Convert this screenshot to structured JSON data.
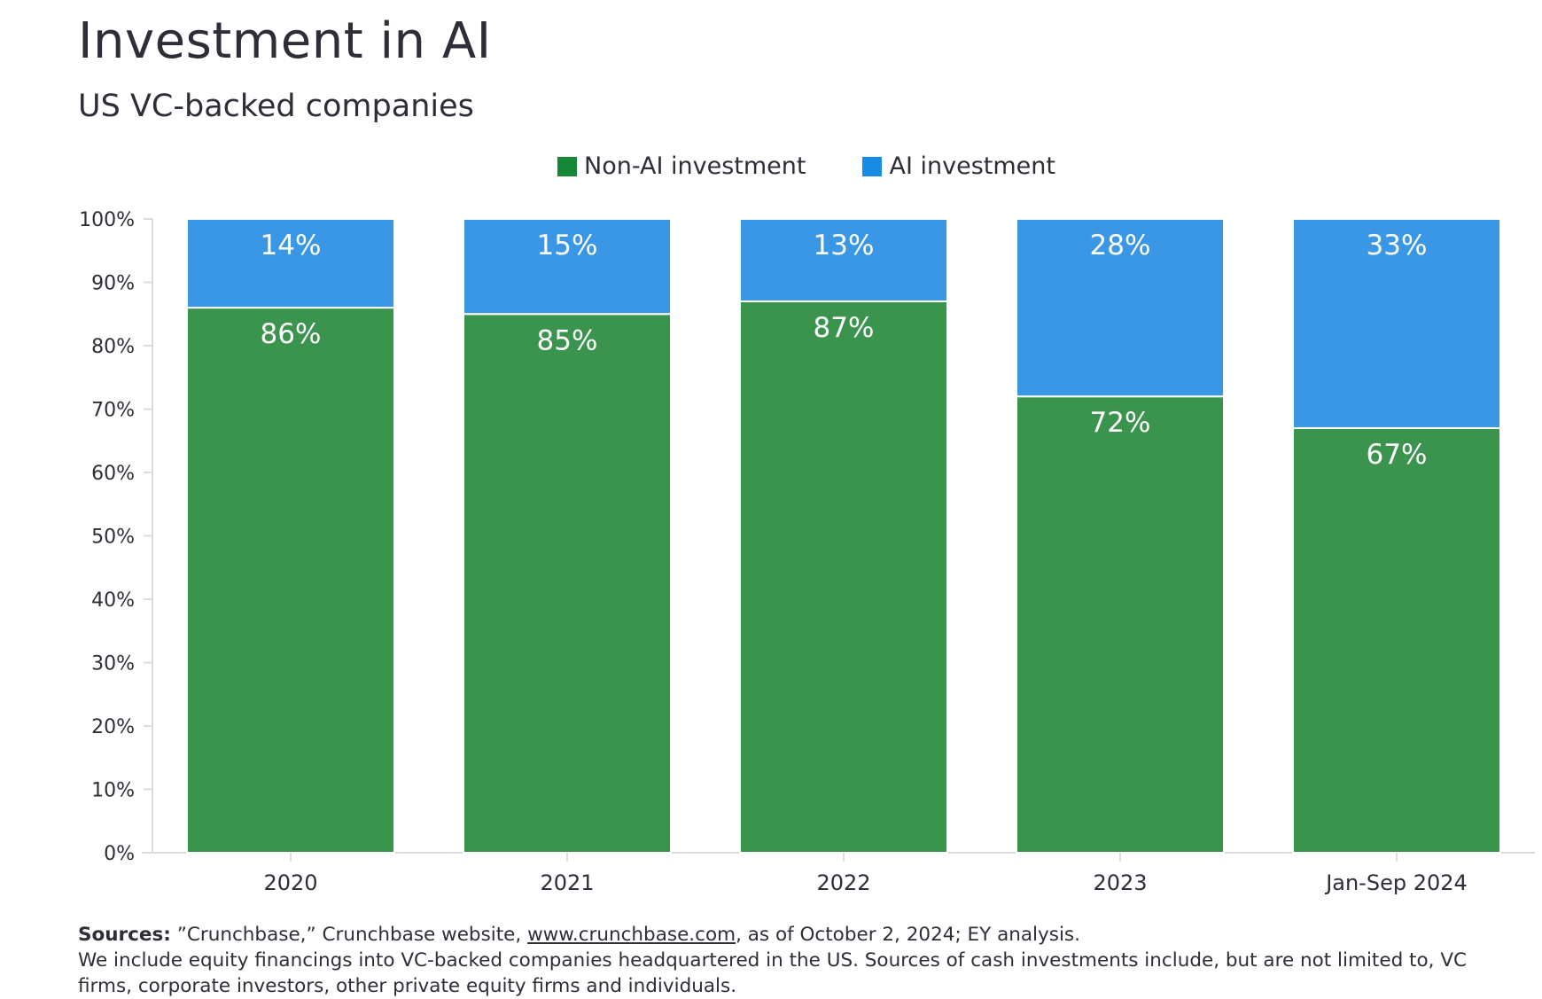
{
  "chart_data": {
    "type": "bar",
    "stacked": true,
    "title": "Investment in AI",
    "subtitle": "US VC-backed companies",
    "categories": [
      "2020",
      "2021",
      "2022",
      "2023",
      "Jan-Sep 2024"
    ],
    "series": [
      {
        "name": "Non-AI investment",
        "color": "#3a944d",
        "legend_color": "#168736",
        "values": [
          86,
          85,
          87,
          72,
          67
        ],
        "labels": [
          "86%",
          "85%",
          "87%",
          "72%",
          "67%"
        ]
      },
      {
        "name": "AI investment",
        "color": "#3a97e6",
        "legend_color": "#188ce5",
        "values": [
          14,
          15,
          13,
          28,
          33
        ],
        "labels": [
          "14%",
          "15%",
          "13%",
          "28%",
          "33%"
        ]
      }
    ],
    "ylim": [
      0,
      100
    ],
    "yticks": [
      "0%",
      "10%",
      "20%",
      "30%",
      "40%",
      "50%",
      "60%",
      "70%",
      "80%",
      "90%",
      "100%"
    ],
    "legend_position": "top-center",
    "grid": false
  },
  "footnote": {
    "lead": "Sources:",
    "text1": " ”Crunchbase,” Crunchbase website, ",
    "link": "www.crunchbase.com",
    "text2": ", as of October 2, 2024; EY analysis.",
    "line2": "We include equity financings into VC-backed companies headquartered in the US. Sources of cash investments include, but are not limited to, VC firms, corporate investors, other private equity firms and individuals."
  }
}
